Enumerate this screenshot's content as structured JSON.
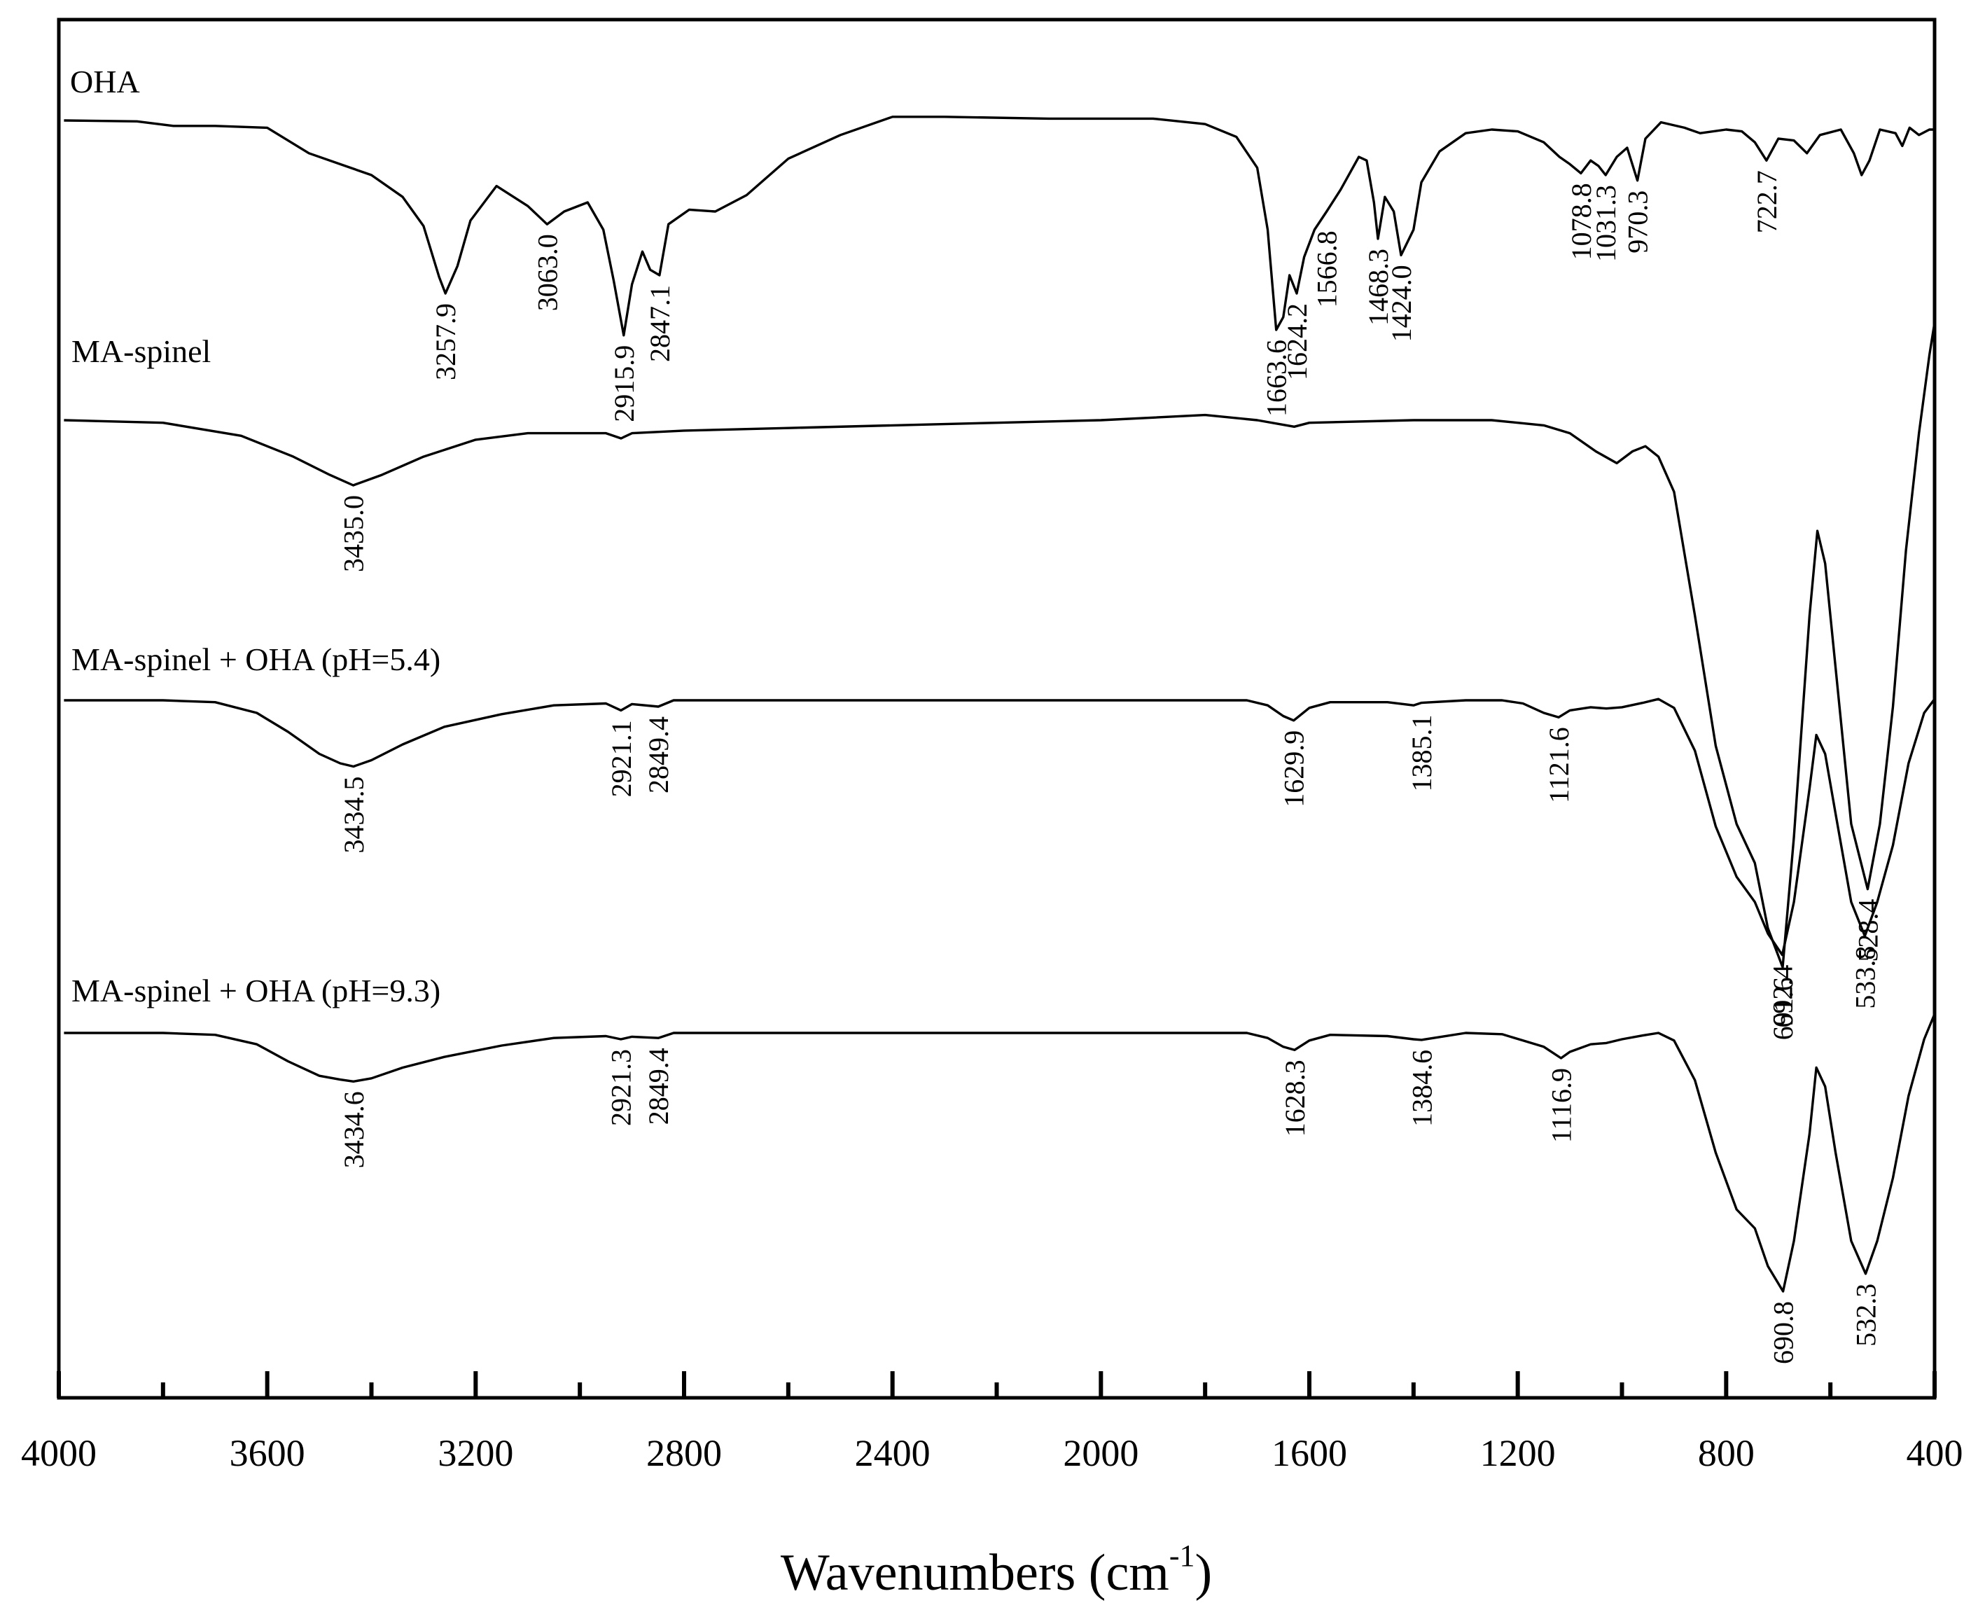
{
  "chart_data": {
    "type": "line",
    "title": "",
    "xlabel": "Wavenumbers (cm",
    "xlabel_sup": "-1",
    "xlabel_close": ")",
    "ylabel": "",
    "xlim": [
      4000,
      400
    ],
    "x_reversed": true,
    "xticks_major": [
      4000,
      3600,
      3200,
      2800,
      2400,
      2000,
      1600,
      1200,
      800,
      400
    ],
    "xticks_minor": [
      3800,
      3400,
      3000,
      2600,
      2200,
      1800,
      1400,
      1000,
      600
    ],
    "grid": false,
    "y_units": "transmittance (offset, arbitrary units)",
    "series": [
      {
        "name": "OHA",
        "baseline": 0.0,
        "points": [
          [
            3990,
            0.0
          ],
          [
            3850,
            0.005
          ],
          [
            3780,
            0.03
          ],
          [
            3700,
            0.03
          ],
          [
            3600,
            0.04
          ],
          [
            3520,
            0.18
          ],
          [
            3450,
            0.25
          ],
          [
            3400,
            0.3
          ],
          [
            3340,
            0.42
          ],
          [
            3300,
            0.58
          ],
          [
            3270,
            0.86
          ],
          [
            3257.9,
            0.95
          ],
          [
            3235,
            0.8
          ],
          [
            3210,
            0.55
          ],
          [
            3160,
            0.36
          ],
          [
            3100,
            0.47
          ],
          [
            3063,
            0.57
          ],
          [
            3030,
            0.5
          ],
          [
            2985,
            0.45
          ],
          [
            2955,
            0.6
          ],
          [
            2935,
            0.88
          ],
          [
            2915.9,
            1.18
          ],
          [
            2900,
            0.9
          ],
          [
            2880,
            0.72
          ],
          [
            2865,
            0.82
          ],
          [
            2847.1,
            0.85
          ],
          [
            2830,
            0.57
          ],
          [
            2790,
            0.49
          ],
          [
            2740,
            0.5
          ],
          [
            2680,
            0.41
          ],
          [
            2600,
            0.21
          ],
          [
            2500,
            0.08
          ],
          [
            2400,
            -0.02
          ],
          [
            2300,
            -0.02
          ],
          [
            2100,
            -0.01
          ],
          [
            1900,
            -0.01
          ],
          [
            1800,
            0.02
          ],
          [
            1740,
            0.09
          ],
          [
            1700,
            0.26
          ],
          [
            1680,
            0.6
          ],
          [
            1663.6,
            1.15
          ],
          [
            1650,
            1.08
          ],
          [
            1638,
            0.85
          ],
          [
            1624.2,
            0.95
          ],
          [
            1610,
            0.75
          ],
          [
            1590,
            0.6
          ],
          [
            1566.8,
            0.5
          ],
          [
            1540,
            0.38
          ],
          [
            1505,
            0.2
          ],
          [
            1490,
            0.22
          ],
          [
            1476,
            0.45
          ],
          [
            1468.3,
            0.65
          ],
          [
            1455,
            0.42
          ],
          [
            1438,
            0.5
          ],
          [
            1424,
            0.74
          ],
          [
            1400,
            0.6
          ],
          [
            1385,
            0.34
          ],
          [
            1350,
            0.17
          ],
          [
            1300,
            0.07
          ],
          [
            1250,
            0.05
          ],
          [
            1200,
            0.06
          ],
          [
            1150,
            0.12
          ],
          [
            1120,
            0.2
          ],
          [
            1100,
            0.24
          ],
          [
            1078.8,
            0.29
          ],
          [
            1060,
            0.22
          ],
          [
            1045,
            0.25
          ],
          [
            1031.3,
            0.3
          ],
          [
            1010,
            0.2
          ],
          [
            990,
            0.15
          ],
          [
            970.3,
            0.33
          ],
          [
            955,
            0.1
          ],
          [
            925,
            0.01
          ],
          [
            880,
            0.04
          ],
          [
            850,
            0.07
          ],
          [
            800,
            0.05
          ],
          [
            770,
            0.06
          ],
          [
            745,
            0.12
          ],
          [
            722.7,
            0.22
          ],
          [
            700,
            0.1
          ],
          [
            670,
            0.11
          ],
          [
            645,
            0.18
          ],
          [
            620,
            0.08
          ],
          [
            580,
            0.05
          ],
          [
            555,
            0.18
          ],
          [
            540,
            0.3
          ],
          [
            525,
            0.22
          ],
          [
            505,
            0.05
          ],
          [
            475,
            0.07
          ],
          [
            462,
            0.14
          ],
          [
            448,
            0.04
          ],
          [
            430,
            0.08
          ],
          [
            410,
            0.05
          ],
          [
            400,
            0.05
          ]
        ],
        "peaks": [
          "3257.9",
          "3063.0",
          "2915.9",
          "2847.1",
          "1663.6",
          "1624.2",
          "1566.8",
          "1468.3",
          "1424.0",
          "1078.8",
          "1031.3",
          "970.3",
          "722.7"
        ]
      },
      {
        "name": "MA-spinel",
        "baseline": 0.0,
        "points": [
          [
            3990,
            0.0
          ],
          [
            3800,
            0.02
          ],
          [
            3650,
            0.12
          ],
          [
            3550,
            0.28
          ],
          [
            3480,
            0.42
          ],
          [
            3435,
            0.5
          ],
          [
            3380,
            0.42
          ],
          [
            3300,
            0.28
          ],
          [
            3200,
            0.15
          ],
          [
            3100,
            0.1
          ],
          [
            3000,
            0.1
          ],
          [
            2950,
            0.1
          ],
          [
            2921,
            0.14
          ],
          [
            2900,
            0.1
          ],
          [
            2800,
            0.08
          ],
          [
            2600,
            0.06
          ],
          [
            2400,
            0.04
          ],
          [
            2200,
            0.02
          ],
          [
            2000,
            0.0
          ],
          [
            1800,
            -0.04
          ],
          [
            1700,
            0.0
          ],
          [
            1629,
            0.05
          ],
          [
            1600,
            0.02
          ],
          [
            1400,
            0.0
          ],
          [
            1250,
            0.0
          ],
          [
            1150,
            0.04
          ],
          [
            1100,
            0.1
          ],
          [
            1050,
            0.24
          ],
          [
            1010,
            0.33
          ],
          [
            980,
            0.24
          ],
          [
            955,
            0.2
          ],
          [
            930,
            0.28
          ],
          [
            900,
            0.55
          ],
          [
            860,
            1.5
          ],
          [
            820,
            2.5
          ],
          [
            780,
            3.1
          ],
          [
            745,
            3.4
          ],
          [
            720,
            3.9
          ],
          [
            691.6,
            4.2
          ],
          [
            670,
            3.2
          ],
          [
            640,
            1.5
          ],
          [
            625,
            0.85
          ],
          [
            610,
            1.1
          ],
          [
            590,
            1.9
          ],
          [
            560,
            3.1
          ],
          [
            528.4,
            3.6
          ],
          [
            505,
            3.1
          ],
          [
            480,
            2.2
          ],
          [
            455,
            1.0
          ],
          [
            430,
            0.1
          ],
          [
            410,
            -0.5
          ],
          [
            400,
            -0.75
          ]
        ],
        "peaks": [
          "3435.0",
          "691.6",
          "528.4"
        ]
      },
      {
        "name": "MA-spinel + OHA (pH=5.4)",
        "baseline": 0.0,
        "points": [
          [
            3990,
            0.0
          ],
          [
            3800,
            0.0
          ],
          [
            3700,
            0.03
          ],
          [
            3620,
            0.2
          ],
          [
            3560,
            0.5
          ],
          [
            3500,
            0.85
          ],
          [
            3460,
            1.0
          ],
          [
            3434.5,
            1.05
          ],
          [
            3400,
            0.95
          ],
          [
            3340,
            0.7
          ],
          [
            3260,
            0.42
          ],
          [
            3150,
            0.22
          ],
          [
            3050,
            0.08
          ],
          [
            2950,
            0.05
          ],
          [
            2921.1,
            0.16
          ],
          [
            2900,
            0.06
          ],
          [
            2849.4,
            0.1
          ],
          [
            2820,
            0.0
          ],
          [
            2600,
            0.0
          ],
          [
            2200,
            0.0
          ],
          [
            1900,
            0.0
          ],
          [
            1720,
            0.0
          ],
          [
            1680,
            0.08
          ],
          [
            1650,
            0.25
          ],
          [
            1629.9,
            0.32
          ],
          [
            1600,
            0.12
          ],
          [
            1560,
            0.03
          ],
          [
            1450,
            0.03
          ],
          [
            1400,
            0.08
          ],
          [
            1385.1,
            0.04
          ],
          [
            1300,
            0.0
          ],
          [
            1230,
            0.0
          ],
          [
            1190,
            0.05
          ],
          [
            1150,
            0.2
          ],
          [
            1121.6,
            0.27
          ],
          [
            1100,
            0.16
          ],
          [
            1060,
            0.11
          ],
          [
            1030,
            0.13
          ],
          [
            1000,
            0.11
          ],
          [
            960,
            0.04
          ],
          [
            930,
            -0.02
          ],
          [
            900,
            0.12
          ],
          [
            860,
            0.8
          ],
          [
            820,
            2.0
          ],
          [
            780,
            2.8
          ],
          [
            745,
            3.2
          ],
          [
            720,
            3.7
          ],
          [
            692.4,
            4.04
          ],
          [
            670,
            3.2
          ],
          [
            640,
            1.4
          ],
          [
            627,
            0.55
          ],
          [
            610,
            0.85
          ],
          [
            590,
            1.8
          ],
          [
            560,
            3.2
          ],
          [
            533.8,
            3.74
          ],
          [
            510,
            3.2
          ],
          [
            480,
            2.3
          ],
          [
            450,
            1.0
          ],
          [
            420,
            0.2
          ],
          [
            400,
            -0.02
          ]
        ],
        "peaks": [
          "3434.5",
          "2921.1",
          "2849.4",
          "1629.9",
          "1385.1",
          "1121.6",
          "692.4",
          "533.8"
        ]
      },
      {
        "name": "MA-spinel + OHA (pH=9.3)",
        "baseline": 0.0,
        "points": [
          [
            3990,
            0.0
          ],
          [
            3800,
            0.0
          ],
          [
            3700,
            0.03
          ],
          [
            3620,
            0.18
          ],
          [
            3560,
            0.45
          ],
          [
            3500,
            0.68
          ],
          [
            3460,
            0.74
          ],
          [
            3434.6,
            0.77
          ],
          [
            3400,
            0.72
          ],
          [
            3340,
            0.55
          ],
          [
            3260,
            0.38
          ],
          [
            3150,
            0.2
          ],
          [
            3050,
            0.08
          ],
          [
            2950,
            0.05
          ],
          [
            2921.3,
            0.1
          ],
          [
            2900,
            0.06
          ],
          [
            2849.4,
            0.08
          ],
          [
            2820,
            0.0
          ],
          [
            2600,
            0.0
          ],
          [
            2200,
            0.0
          ],
          [
            1900,
            0.0
          ],
          [
            1720,
            0.0
          ],
          [
            1680,
            0.08
          ],
          [
            1650,
            0.22
          ],
          [
            1628.3,
            0.27
          ],
          [
            1600,
            0.12
          ],
          [
            1560,
            0.03
          ],
          [
            1450,
            0.05
          ],
          [
            1400,
            0.1
          ],
          [
            1384.6,
            0.11
          ],
          [
            1300,
            0.0
          ],
          [
            1230,
            0.02
          ],
          [
            1190,
            0.12
          ],
          [
            1150,
            0.22
          ],
          [
            1116.9,
            0.4
          ],
          [
            1100,
            0.3
          ],
          [
            1060,
            0.18
          ],
          [
            1030,
            0.16
          ],
          [
            1000,
            0.1
          ],
          [
            960,
            0.04
          ],
          [
            930,
            0.0
          ],
          [
            900,
            0.12
          ],
          [
            860,
            0.75
          ],
          [
            820,
            1.9
          ],
          [
            780,
            2.8
          ],
          [
            745,
            3.1
          ],
          [
            720,
            3.7
          ],
          [
            690.8,
            4.1
          ],
          [
            670,
            3.3
          ],
          [
            640,
            1.6
          ],
          [
            627,
            0.55
          ],
          [
            610,
            0.85
          ],
          [
            590,
            1.9
          ],
          [
            560,
            3.3
          ],
          [
            532.3,
            3.82
          ],
          [
            510,
            3.3
          ],
          [
            480,
            2.3
          ],
          [
            450,
            1.0
          ],
          [
            420,
            0.1
          ],
          [
            400,
            -0.3
          ]
        ],
        "peaks": [
          "3434.6",
          "2921.3",
          "2849.4",
          "1628.3",
          "1384.6",
          "1116.9",
          "690.8",
          "532.3"
        ]
      }
    ]
  }
}
